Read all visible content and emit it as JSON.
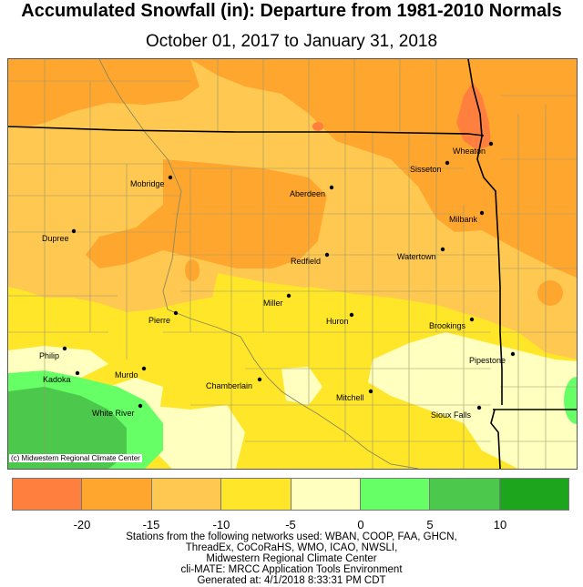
{
  "title": "Accumulated Snowfall (in): Departure from 1981-2010 Normals",
  "subtitle": "October 01, 2017 to January 31, 2018",
  "credit": "(c) Midwestern Regional Climate Center",
  "cities": [
    {
      "name": "Wheaton"
    },
    {
      "name": "Sisseton"
    },
    {
      "name": "Mobridge"
    },
    {
      "name": "Aberdeen"
    },
    {
      "name": "Milbank"
    },
    {
      "name": "Dupree"
    },
    {
      "name": "Watertown"
    },
    {
      "name": "Redfield"
    },
    {
      "name": "Miller"
    },
    {
      "name": "Pierre"
    },
    {
      "name": "Huron"
    },
    {
      "name": "Brookings"
    },
    {
      "name": "Philip"
    },
    {
      "name": "Pipestone"
    },
    {
      "name": "Kadoka"
    },
    {
      "name": "Murdo"
    },
    {
      "name": "Chamberlain"
    },
    {
      "name": "Mitchell"
    },
    {
      "name": "White River"
    },
    {
      "name": "Sioux Falls"
    }
  ],
  "legend": {
    "colors": [
      "#ff7f3f",
      "#ffa62f",
      "#ffc850",
      "#ffe629",
      "#ffffc0",
      "#66ff66",
      "#4cc94c",
      "#1ea51e"
    ],
    "ticks": [
      "-20",
      "-15",
      "-10",
      "-5",
      "0",
      "5",
      "10"
    ]
  },
  "footer": [
    "Stations from the following networks used: WBAN, COOP, FAA, GHCN,",
    "ThreadEx, CoCoRaHS, WMO, ICAO, NWSLI,",
    "Midwestern Regional Climate Center",
    "cli-MATE: MRCC Application Tools Environment",
    "Generated at: 4/1/2018 8:33:31 PM CDT"
  ]
}
